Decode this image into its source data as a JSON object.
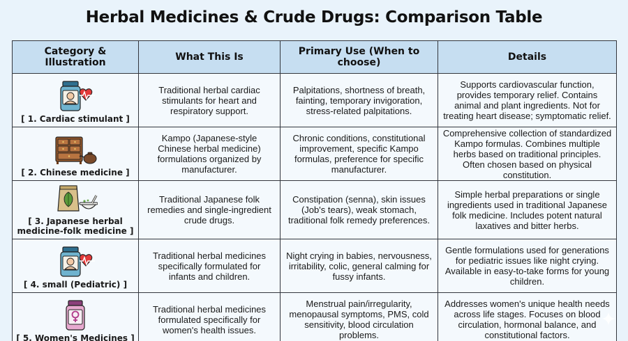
{
  "title": "Herbal Medicines & Crude Drugs: Comparison Table",
  "headers": [
    "Category & Illustration",
    "What This Is",
    "Primary Use (When to choose)",
    "Details"
  ],
  "rows": [
    {
      "category": "[ 1. Cardiac stimulant ]",
      "icon": "medicine-bottle-heart-icon",
      "what": "Traditional herbal cardiac stimulants for heart and respiratory support.",
      "use": "Palpitations, shortness of breath, fainting, temporary invigoration, stress-related palpitations.",
      "details": "Supports cardiovascular function, provides temporary relief. Contains animal and plant ingredients. Not for treating heart disease; symptomatic relief."
    },
    {
      "category": "[ 2. Chinese medicine ]",
      "icon": "wooden-cabinet-teapot-icon",
      "what": "Kampo (Japanese-style Chinese herbal medicine) formulations organized by manufacturer.",
      "use": "Chronic conditions, constitutional improvement, specific Kampo formulas, preference for specific manufacturer.",
      "details": "Comprehensive collection of standardized Kampo formulas. Combines multiple herbs based on traditional principles. Often chosen based on physical constitution."
    },
    {
      "category": "[ 3. Japanese herbal medicine-folk medicine ]",
      "icon": "herb-bag-mortar-icon",
      "what": "Traditional Japanese folk remedies and single-ingredient crude drugs.",
      "use": "Constipation (senna), skin issues (Job's tears), weak stomach, traditional folk remedy preferences.",
      "details": "Simple herbal preparations or single ingredients used in traditional Japanese folk medicine. Includes potent natural laxatives and bitter herbs."
    },
    {
      "category": "[ 4. small (Pediatric) ]",
      "icon": "medicine-bottle-heart-icon",
      "what": "Traditional herbal medicines specifically formulated for infants and children.",
      "use": "Night crying in babies, nervousness, irritability, colic, general calming for fussy infants.",
      "details": "Gentle formulations used for generations for pediatric issues like night crying. Available in easy-to-take forms for young children."
    },
    {
      "category": "[ 5. Women's Medicines ]",
      "icon": "female-symbol-bottle-icon",
      "what": "Traditional herbal medicines formulated specifically for women's health issues.",
      "use": "Menstrual pain/irregularity, menopausal symptoms, PMS, cold sensitivity, blood circulation problems.",
      "details": "Addresses women's unique health needs across life stages. Focuses on blood circulation, hormonal balance, and constitutional factors."
    }
  ]
}
